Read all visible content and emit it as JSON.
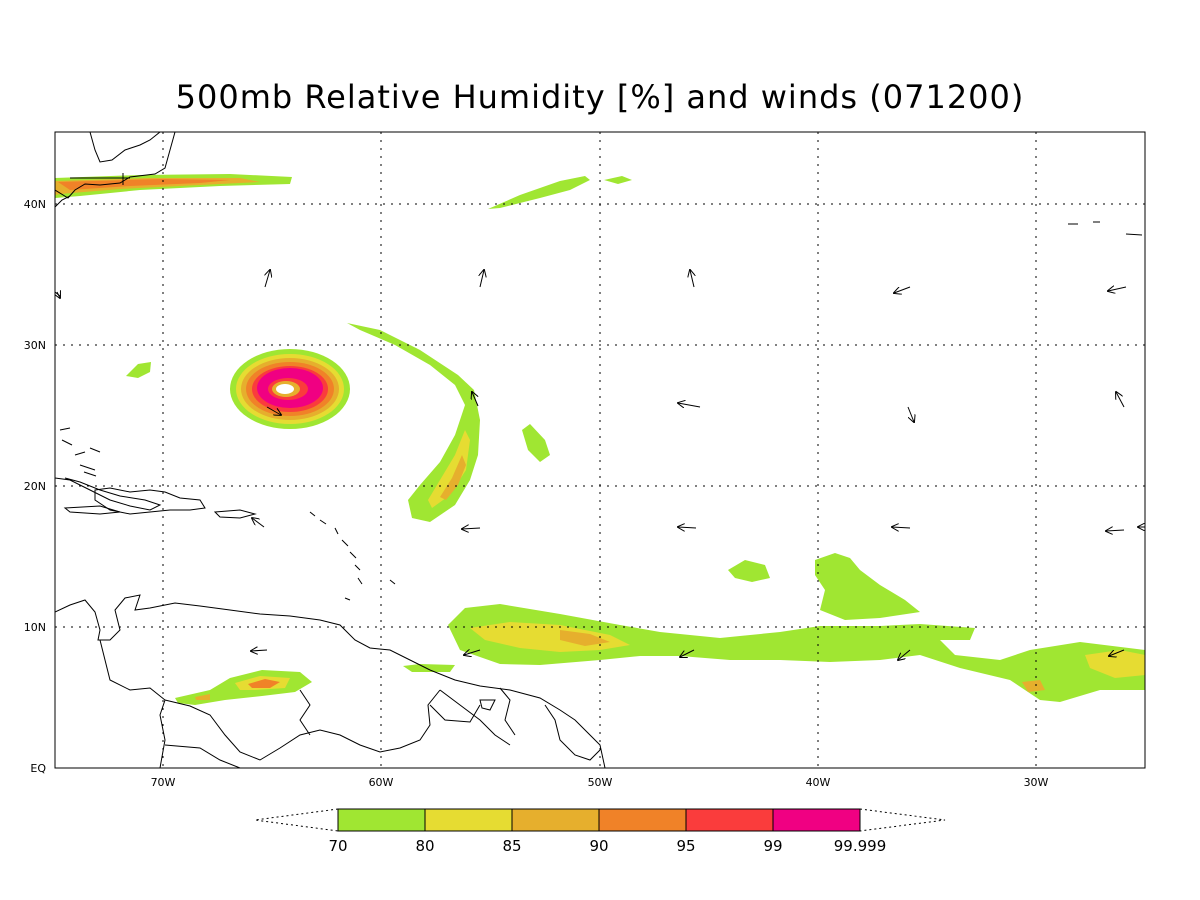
{
  "title": "500mb Relative Humidity [%] and winds (071200)",
  "map": {
    "background": "#ffffff",
    "lon_labels": [
      "70W",
      "60W",
      "50W",
      "40W",
      "30W"
    ],
    "lat_labels": [
      "40N",
      "30N",
      "20N",
      "10N",
      "EQ"
    ],
    "grid": "dotted",
    "colors": {
      "rh70": "#a0e632",
      "rh80": "#e6dc32",
      "rh85": "#e6af2d",
      "rh90": "#f08228",
      "rh95": "#fa3c3c",
      "rh99": "#f00082"
    }
  },
  "colorbar": {
    "bins": [
      {
        "color": "#a0e632",
        "label": "70"
      },
      {
        "color": "#e6dc32",
        "label": "80"
      },
      {
        "color": "#e6af2d",
        "label": "85"
      },
      {
        "color": "#f08228",
        "label": "90"
      },
      {
        "color": "#fa3c3c",
        "label": "95"
      },
      {
        "color": "#f00082",
        "label": "99"
      }
    ],
    "end_label": "99.999"
  }
}
